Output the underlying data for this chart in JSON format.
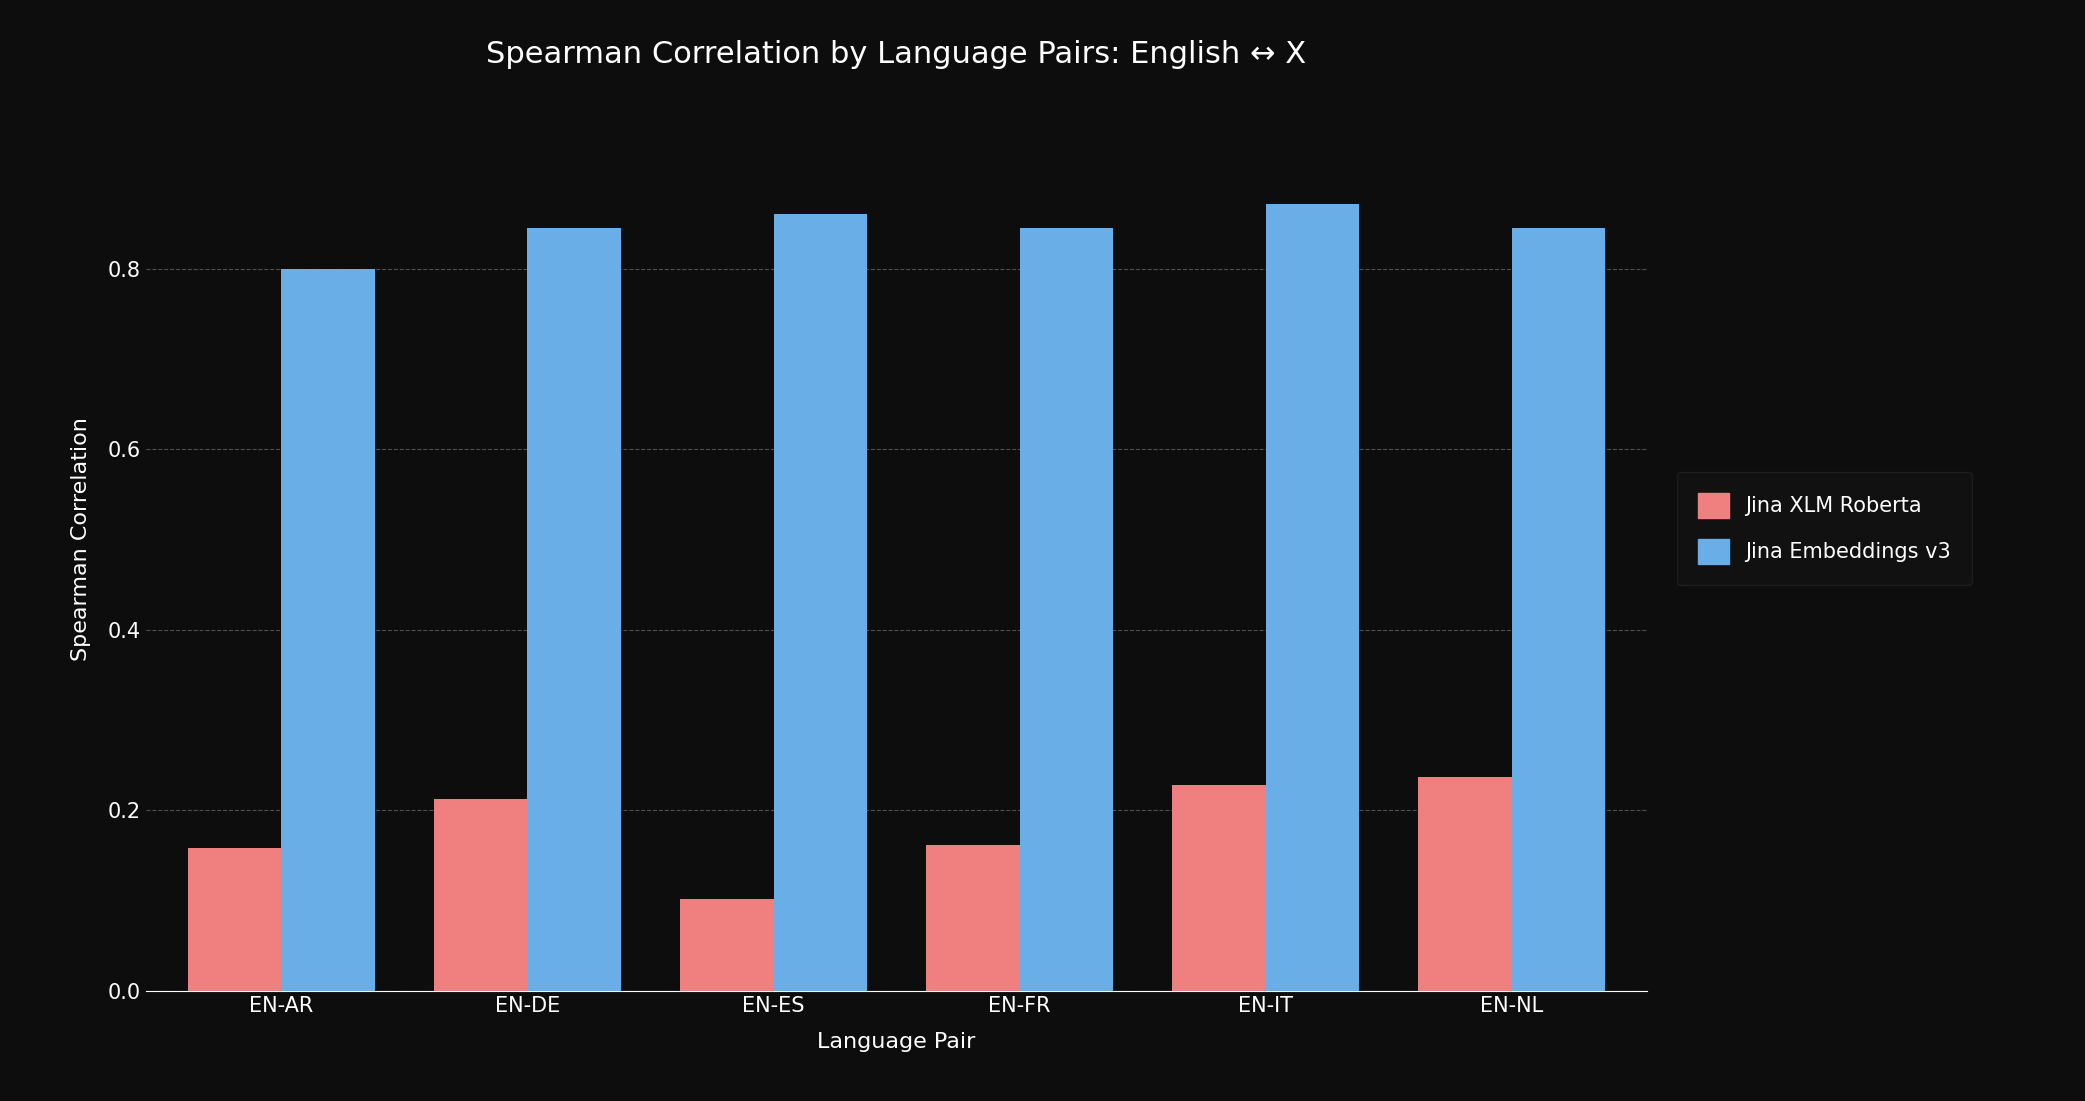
{
  "categories": [
    "EN-AR",
    "EN-DE",
    "EN-ES",
    "EN-FR",
    "EN-IT",
    "EN-NL"
  ],
  "jina_xlm": [
    0.158,
    0.213,
    0.102,
    0.162,
    0.228,
    0.237
  ],
  "jina_v3": [
    0.8,
    0.845,
    0.86,
    0.845,
    0.872,
    0.845
  ],
  "color_red": "#F08080",
  "color_blue": "#6aaee8",
  "background_color": "#0d0d0d",
  "text_color": "#ffffff",
  "grid_color": "#888888",
  "title": "Spearman Correlation by Language Pairs: English ↔ X",
  "ylabel": "Spearman Correlation",
  "xlabel": "Language Pair",
  "legend_labels": [
    "Jina XLM Roberta",
    "Jina Embeddings v3"
  ],
  "ylim": [
    0.0,
    1.0
  ],
  "bar_width": 0.38,
  "title_fontsize": 22,
  "label_fontsize": 16,
  "tick_fontsize": 15,
  "legend_fontsize": 15
}
